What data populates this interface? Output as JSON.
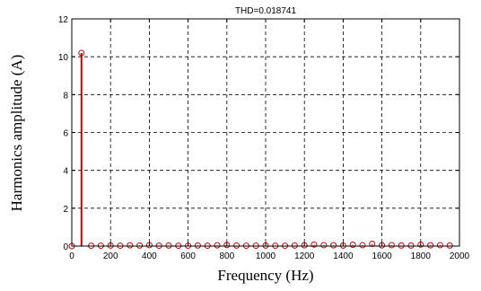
{
  "chart_data": {
    "type": "stem",
    "title": "THD=0.018741",
    "xlabel": "Frequency (Hz)",
    "ylabel": "Harmonics amplitude (A)",
    "xlim": [
      0,
      2000
    ],
    "ylim": [
      0,
      12
    ],
    "xticks": [
      0,
      200,
      400,
      600,
      800,
      1000,
      1200,
      1400,
      1600,
      1800,
      2000
    ],
    "yticks": [
      0,
      2,
      4,
      6,
      8,
      10,
      12
    ],
    "xtick_labels": [
      "0",
      "200",
      "400",
      "600",
      "800",
      "1000",
      "1200",
      "1400",
      "1600",
      "1800",
      "2000"
    ],
    "ytick_labels": [
      "0",
      "2",
      "4",
      "6",
      "8",
      "10",
      "12"
    ],
    "grid": true,
    "grid_style": "dashed",
    "marker": "circle",
    "marker_color": "#cc0000",
    "stem_color": "#cc0000",
    "series": [
      {
        "x": [
          50,
          100,
          150,
          200,
          250,
          300,
          350,
          400,
          450,
          500,
          550,
          600,
          650,
          700,
          750,
          800,
          850,
          900,
          950,
          1000,
          1050,
          1100,
          1150,
          1200,
          1250,
          1300,
          1350,
          1400,
          1450,
          1500,
          1550,
          1600,
          1650,
          1700,
          1750,
          1800,
          1850,
          1900,
          1950
        ],
        "values": [
          10.2,
          0.02,
          0.02,
          0.03,
          0.02,
          0.04,
          0.03,
          0.05,
          0.02,
          0.03,
          0.02,
          0.02,
          0.03,
          0.02,
          0.04,
          0.06,
          0.03,
          0.02,
          0.02,
          0.03,
          0.02,
          0.02,
          0.03,
          0.04,
          0.08,
          0.05,
          0.04,
          0.03,
          0.07,
          0.05,
          0.12,
          0.04,
          0.05,
          0.03,
          0.03,
          0.08,
          0.04,
          0.05,
          0.03
        ]
      }
    ]
  }
}
